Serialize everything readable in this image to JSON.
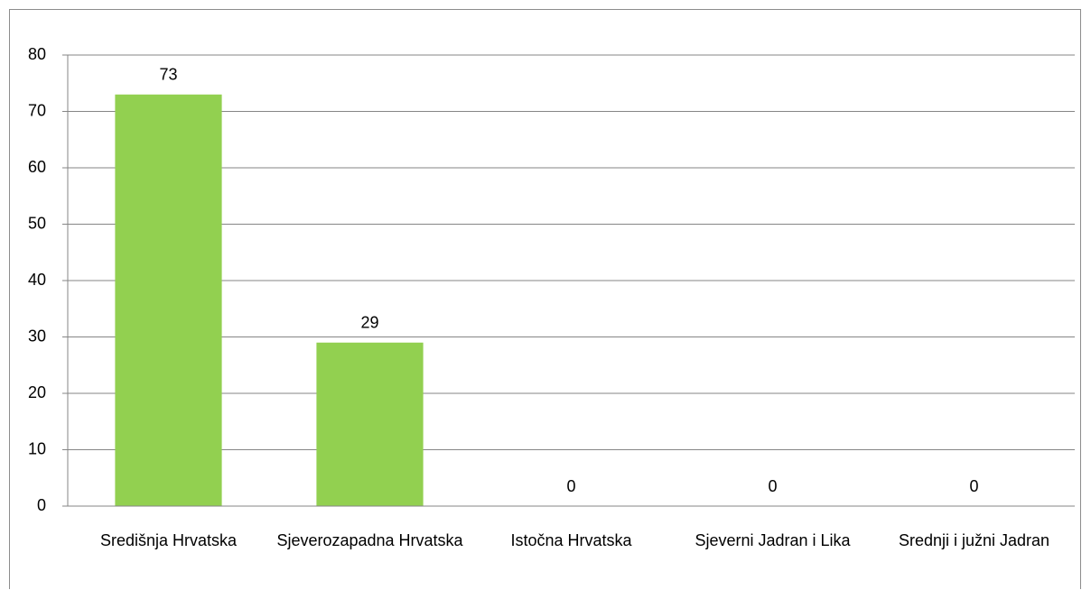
{
  "chart_data": {
    "type": "bar",
    "categories": [
      "Središnja Hrvatska",
      "Sjeverozapadna Hrvatska",
      "Istočna Hrvatska",
      "Sjeverni Jadran i Lika",
      "Srednji i južni Jadran"
    ],
    "values": [
      73,
      29,
      0,
      0,
      0
    ],
    "color": "#92d050",
    "ylim": [
      0,
      80
    ],
    "yticks": [
      0,
      10,
      20,
      30,
      40,
      50,
      60,
      70,
      80
    ],
    "grid": true
  }
}
